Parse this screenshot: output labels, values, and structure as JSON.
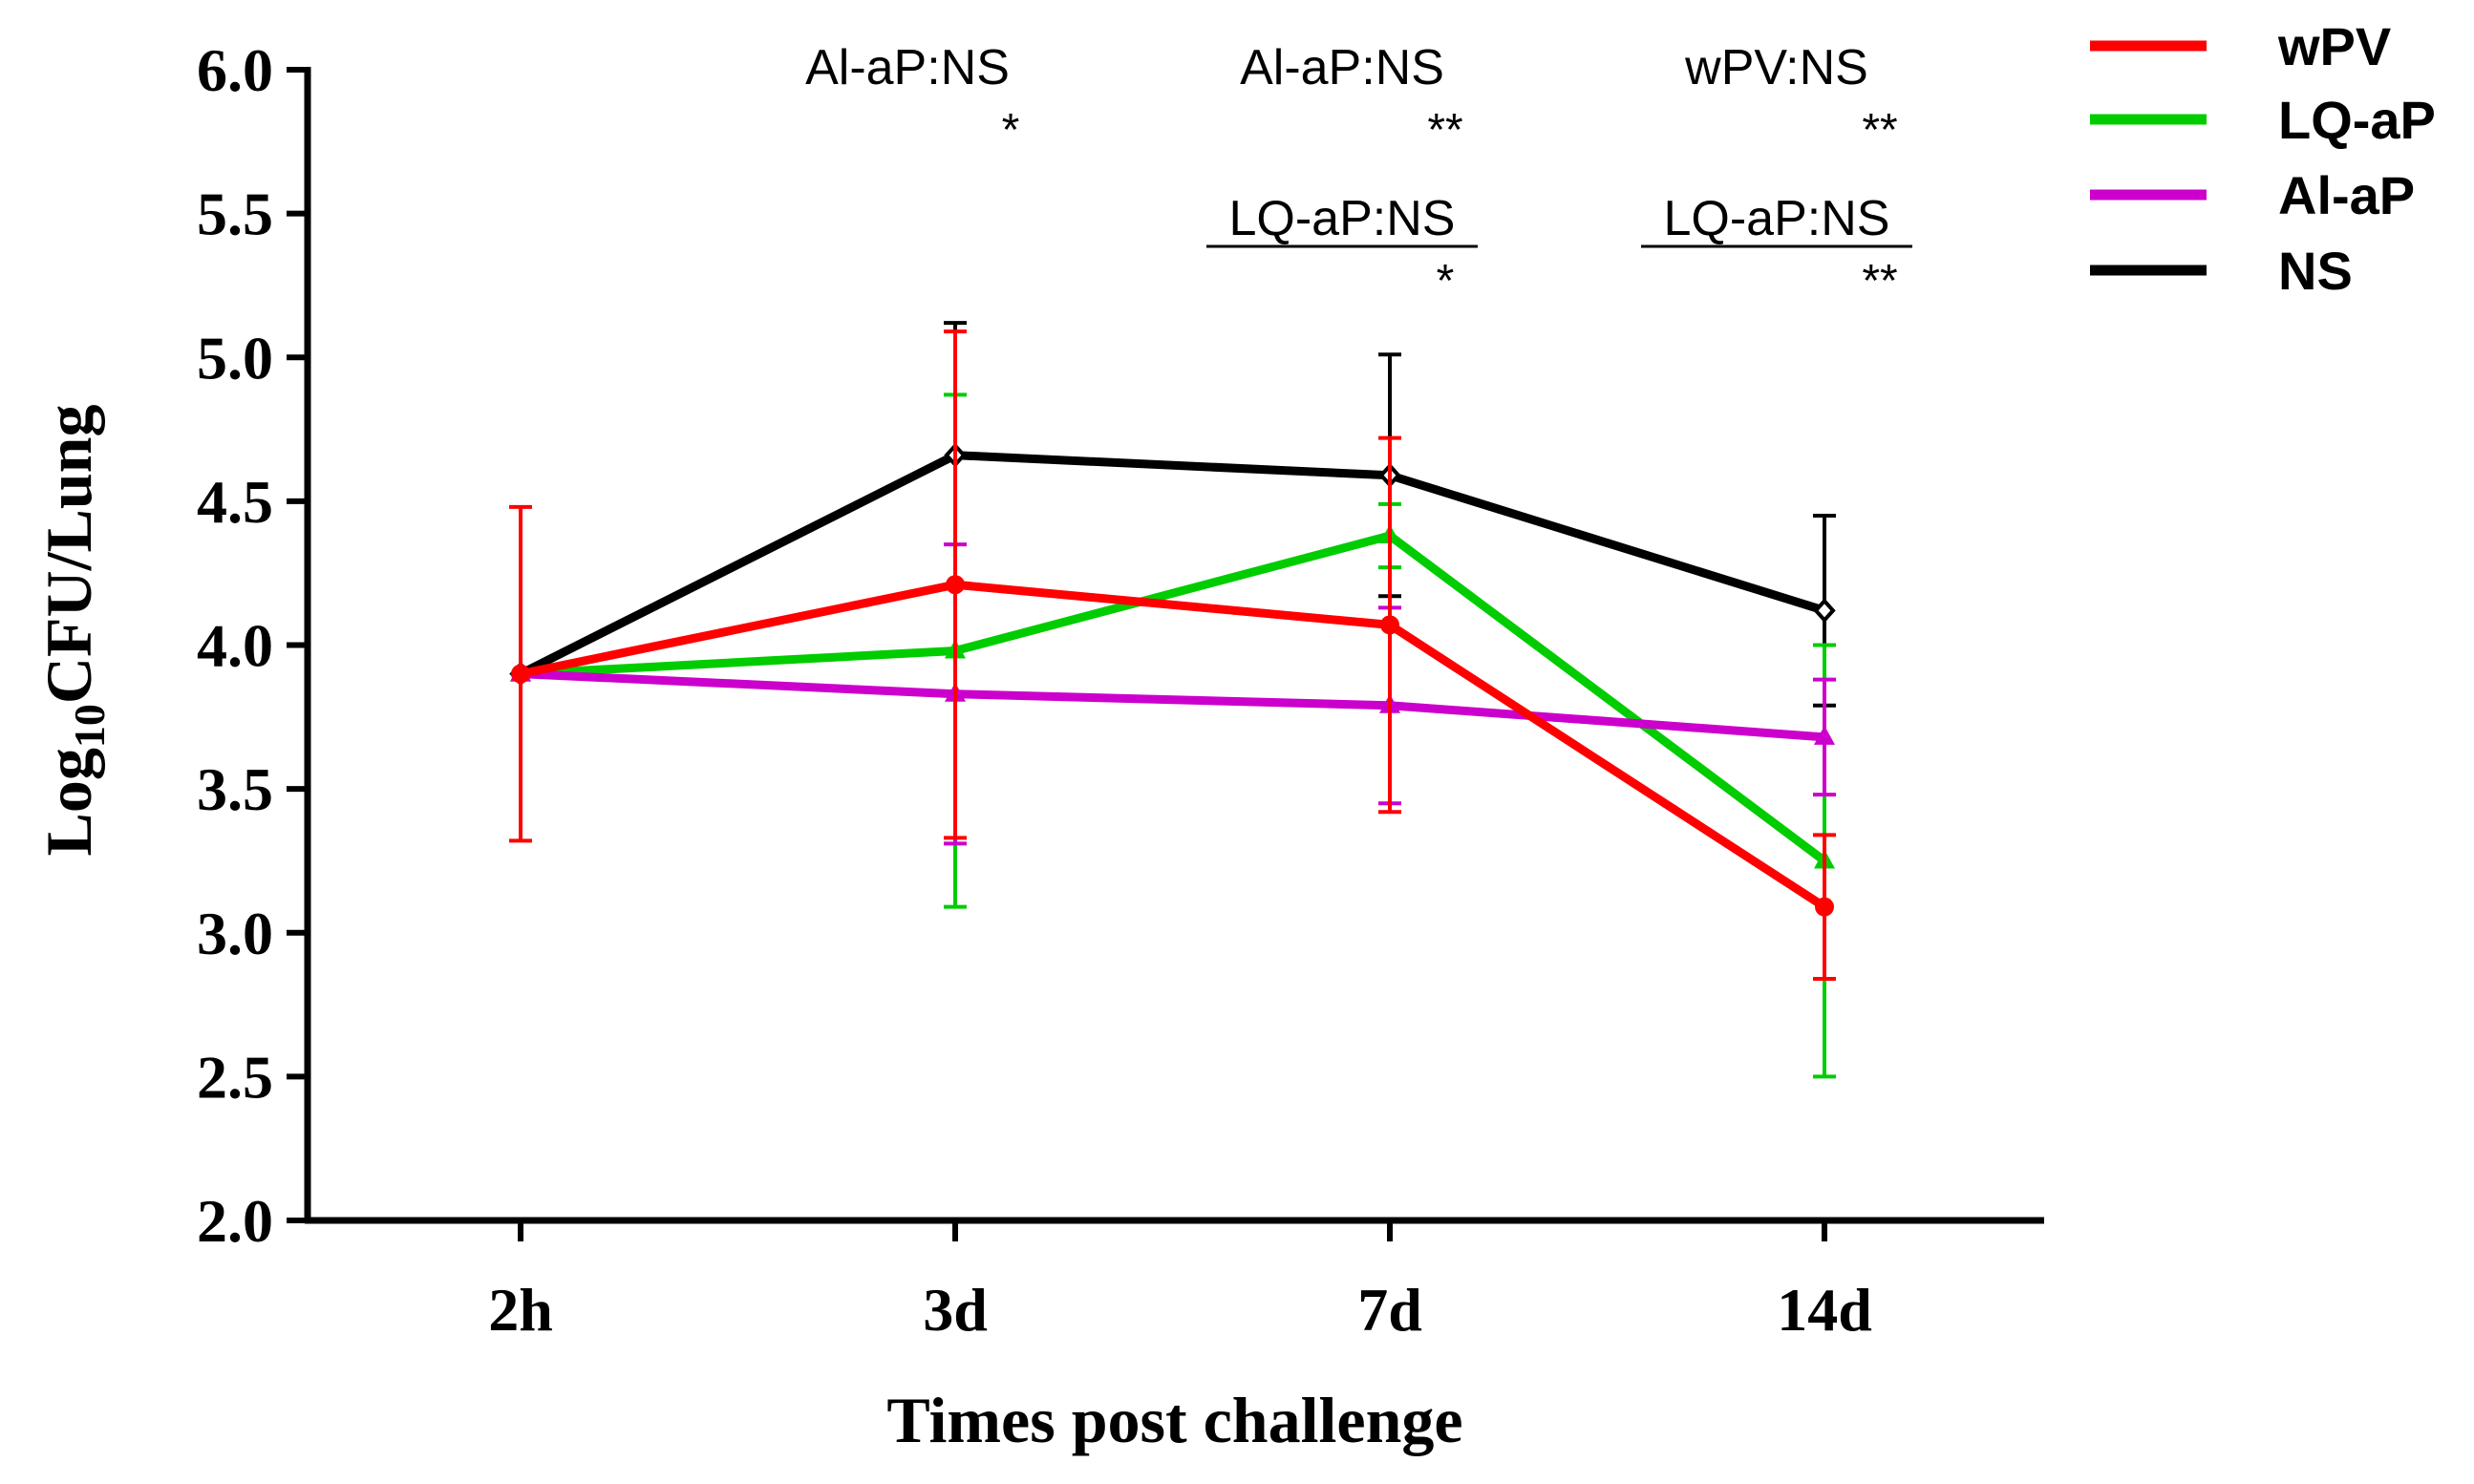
{
  "chart_data": {
    "type": "line",
    "title": "",
    "xlabel": "Times post challenge",
    "ylabel_main": "Log",
    "ylabel_sub": "10",
    "ylabel_rest": "CFU/Lung",
    "categories": [
      "2h",
      "3d",
      "7d",
      "14d"
    ],
    "ylim": [
      2.0,
      6.0
    ],
    "yticks": [
      2.0,
      2.5,
      3.0,
      3.5,
      4.0,
      4.5,
      5.0,
      5.5,
      6.0
    ],
    "ytick_labels": [
      "2.0",
      "2.5",
      "3.0",
      "3.5",
      "4.0",
      "4.5",
      "5.0",
      "5.5",
      "6.0"
    ],
    "legend_position": "top-right",
    "series": [
      {
        "name": "NS",
        "color": "#000000",
        "marker": "diamond-open",
        "values": [
          3.9,
          4.66,
          4.59,
          4.12
        ],
        "err": [
          0,
          0.46,
          0.42,
          0.33
        ]
      },
      {
        "name": "LQ-aP",
        "color": "#00cc00",
        "marker": "triangle",
        "values": [
          3.9,
          3.98,
          4.38,
          3.25
        ],
        "err": [
          0,
          0.89,
          0.11,
          0.75
        ]
      },
      {
        "name": "Al-aP",
        "color": "#cc00cc",
        "marker": "triangle",
        "values": [
          3.9,
          3.83,
          3.79,
          3.68
        ],
        "err": [
          0,
          0.52,
          0.34,
          0.2
        ]
      },
      {
        "name": "wPV",
        "color": "#ff0000",
        "marker": "circle",
        "values": [
          3.9,
          4.21,
          4.07,
          3.09
        ],
        "err": [
          0.58,
          0.88,
          0.65,
          0.25
        ]
      }
    ],
    "legend_order": [
      "wPV",
      "LQ-aP",
      "Al-aP",
      "NS"
    ],
    "annotations": [
      {
        "category": "3d",
        "label": "Al-aP:NS",
        "stars": "*",
        "row": 1,
        "underline": false
      },
      {
        "category": "7d",
        "label": "Al-aP:NS",
        "stars": "**",
        "row": 1,
        "underline": false
      },
      {
        "category": "7d",
        "label": "LQ-aP:NS",
        "stars": "*",
        "row": 2,
        "underline": true
      },
      {
        "category": "14d",
        "label": "wPV:NS",
        "stars": "**",
        "row": 1,
        "underline": false
      },
      {
        "category": "14d",
        "label": "LQ-aP:NS",
        "stars": "**",
        "row": 2,
        "underline": true
      }
    ]
  }
}
